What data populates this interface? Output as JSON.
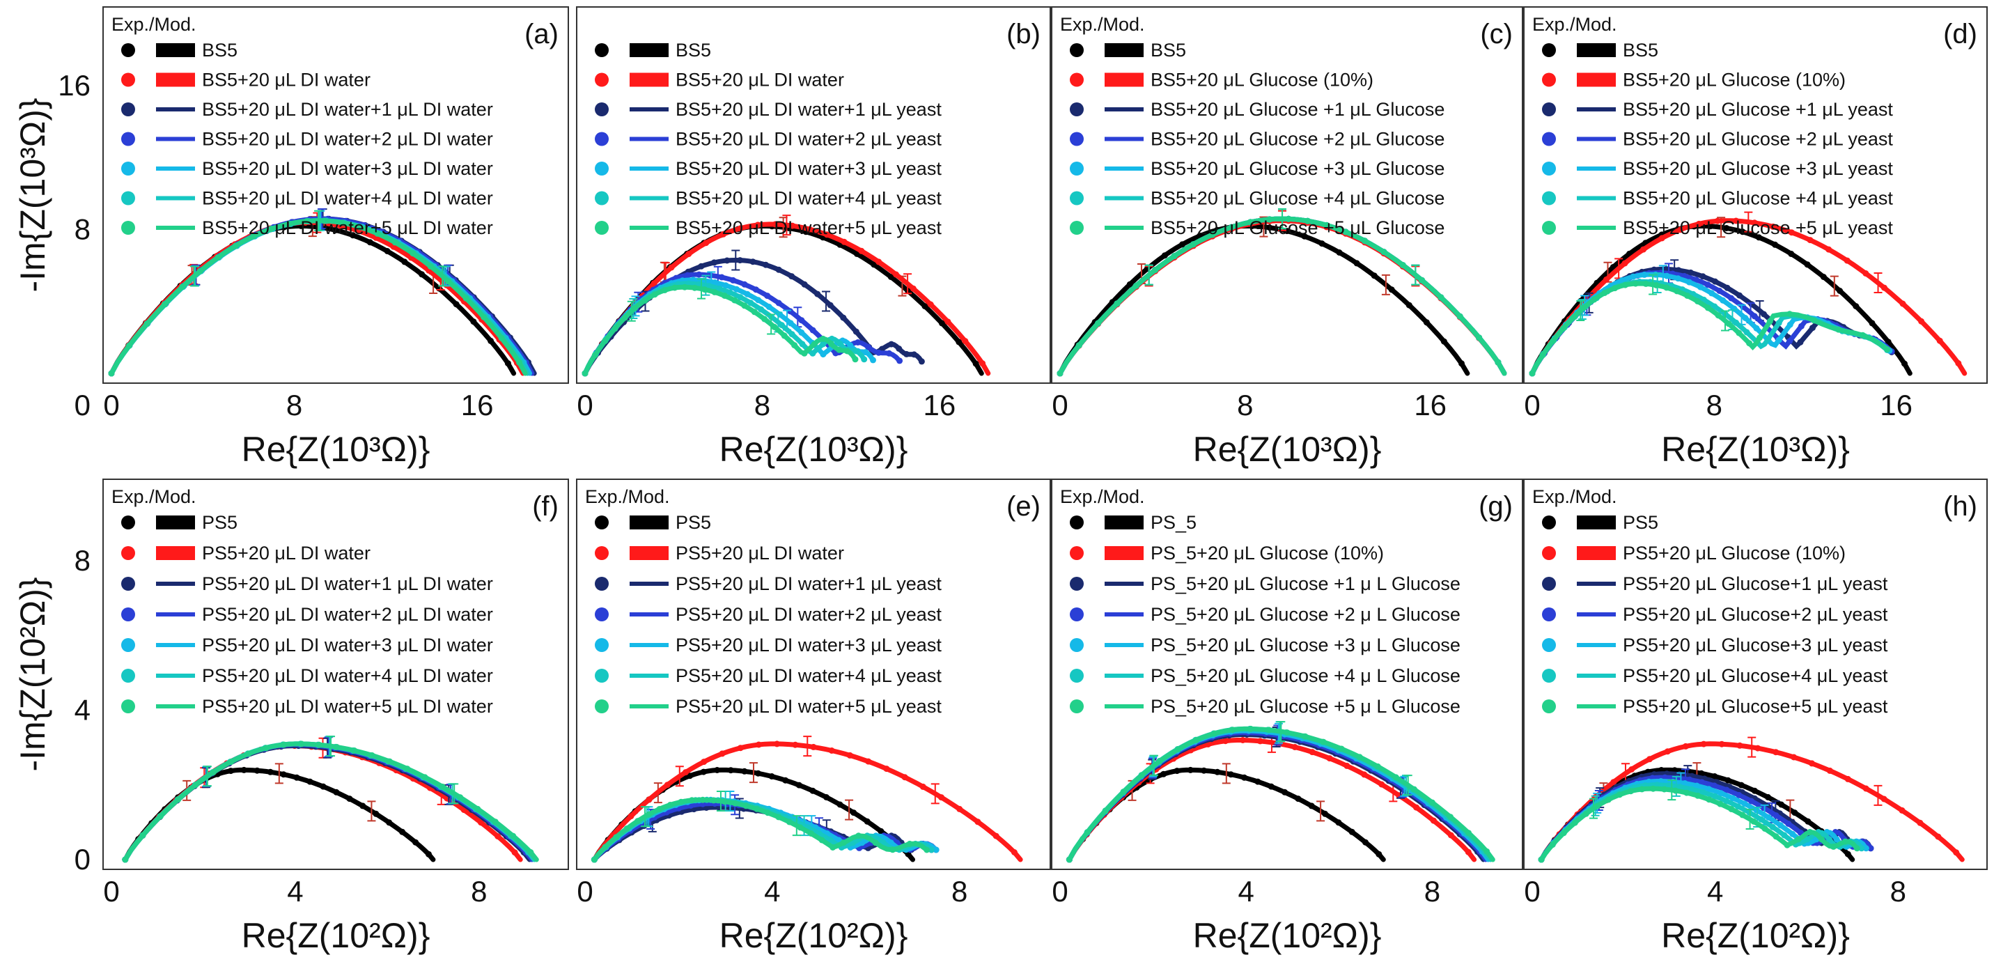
{
  "chart_data": [
    {
      "type": "line",
      "panel": "(a)",
      "legend_header": "Exp./Mod.",
      "xlabel": "Re{Z(10³Ω)}",
      "ylabel": "-Im{Z(10³Ω)}",
      "xlim": [
        0,
        19.5
      ],
      "ylim": [
        0,
        20
      ],
      "xticks": [
        0,
        8,
        16
      ],
      "yticks": [
        8,
        16
      ],
      "series": [
        {
          "name": "BS5",
          "color": "#000000",
          "shape": "arc",
          "x0": 0,
          "x1": 17.6,
          "peak": 8.2,
          "peak_at": 0.47
        },
        {
          "name": "BS5+20 μL DI water",
          "color": "#ff1a1a",
          "shape": "arc",
          "x0": 0,
          "x1": 18.0,
          "peak": 8.4,
          "peak_at": 0.48
        },
        {
          "name": "BS5+20 μL DI water+1 μL DI water",
          "color": "#1a2a6e",
          "shape": "arc",
          "x0": 0,
          "x1": 18.5,
          "peak": 8.6,
          "peak_at": 0.5
        },
        {
          "name": "BS5+20 μL DI water+2 μL DI water",
          "color": "#2b3fd6",
          "shape": "arc",
          "x0": 0,
          "x1": 18.4,
          "peak": 8.6,
          "peak_at": 0.5
        },
        {
          "name": "BS5+20 μL DI water+3 μL DI water",
          "color": "#15b9e8",
          "shape": "arc",
          "x0": 0,
          "x1": 18.3,
          "peak": 8.5,
          "peak_at": 0.5
        },
        {
          "name": "BS5+20 μL DI water+4 μL DI water",
          "color": "#16c7c2",
          "shape": "arc",
          "x0": 0,
          "x1": 18.2,
          "peak": 8.5,
          "peak_at": 0.5
        },
        {
          "name": "BS5+20 μL DI water+5 μL DI water",
          "color": "#22d08a",
          "shape": "arc",
          "x0": 0,
          "x1": 18.1,
          "peak": 8.5,
          "peak_at": 0.5
        }
      ]
    },
    {
      "type": "line",
      "panel": "(b)",
      "legend_header": "",
      "xlabel": "Re{Z(10³Ω)}",
      "ylabel": "",
      "xlim": [
        0,
        20.5
      ],
      "ylim": [
        0,
        20
      ],
      "xticks": [
        0,
        8,
        16
      ],
      "yticks": [
        8,
        16
      ],
      "series": [
        {
          "name": "BS5",
          "color": "#000000",
          "shape": "arc",
          "x0": 0,
          "x1": 17.9,
          "peak": 8.2,
          "peak_at": 0.45
        },
        {
          "name": "BS5+20 μL DI water",
          "color": "#ff1a1a",
          "shape": "arc",
          "x0": 0,
          "x1": 18.2,
          "peak": 8.3,
          "peak_at": 0.46
        },
        {
          "name": "BS5+20 μL DI water+1 μL  yeast",
          "color": "#1a2a6e",
          "shape": "tail",
          "x0": 0,
          "x1": 13.6,
          "peak": 6.3,
          "peak_at": 0.5,
          "tail_end": 15.2,
          "tail_level": 1.5
        },
        {
          "name": "BS5+20 μL DI water+2 μL  yeast",
          "color": "#2b3fd6",
          "shape": "tail",
          "x0": 0,
          "x1": 12.0,
          "peak": 5.5,
          "peak_at": 0.42,
          "tail_end": 14.2,
          "tail_level": 1.6
        },
        {
          "name": "BS5+20 μL DI water+3 μL  yeast",
          "color": "#15b9e8",
          "shape": "tail",
          "x0": 0,
          "x1": 11.4,
          "peak": 5.2,
          "peak_at": 0.42,
          "tail_end": 13.0,
          "tail_level": 1.7
        },
        {
          "name": "BS5+20 μL DI water+4 μL  yeast",
          "color": "#16c7c2",
          "shape": "tail",
          "x0": 0,
          "x1": 10.9,
          "peak": 5.0,
          "peak_at": 0.42,
          "tail_end": 12.6,
          "tail_level": 1.8
        },
        {
          "name": "BS5+20 μL DI water+5 μL  yeast",
          "color": "#22d08a",
          "shape": "tail",
          "x0": 0,
          "x1": 10.5,
          "peak": 4.8,
          "peak_at": 0.42,
          "tail_end": 12.2,
          "tail_level": 1.8
        }
      ]
    },
    {
      "type": "line",
      "panel": "(c)",
      "legend_header": "Exp./Mod.",
      "xlabel": "Re{Z(10³Ω)}",
      "ylabel": "",
      "xlim": [
        0,
        19.5
      ],
      "ylim": [
        0,
        20
      ],
      "xticks": [
        0,
        8,
        16
      ],
      "yticks": [
        8,
        16
      ],
      "series": [
        {
          "name": "BS5",
          "color": "#000000",
          "shape": "arc",
          "x0": 0,
          "x1": 17.6,
          "peak": 8.2,
          "peak_at": 0.46
        },
        {
          "name": "BS5+20 μL Glucose (10%)",
          "color": "#ff1a1a",
          "shape": "arc",
          "x0": 0,
          "x1": 19.2,
          "peak": 8.5,
          "peak_at": 0.5
        },
        {
          "name": "BS5+20 μL Glucose +1 μL Glucose",
          "color": "#1a2a6e",
          "shape": "arc",
          "x0": 0,
          "x1": 19.2,
          "peak": 8.6,
          "peak_at": 0.5
        },
        {
          "name": "BS5+20 μL Glucose +2 μL Glucose",
          "color": "#2b3fd6",
          "shape": "arc",
          "x0": 0,
          "x1": 19.2,
          "peak": 8.6,
          "peak_at": 0.5
        },
        {
          "name": "BS5+20 μL Glucose +3 μL Glucose",
          "color": "#15b9e8",
          "shape": "arc",
          "x0": 0,
          "x1": 19.2,
          "peak": 8.6,
          "peak_at": 0.5
        },
        {
          "name": "BS5+20 μL Glucose +4 μL Glucose",
          "color": "#16c7c2",
          "shape": "arc",
          "x0": 0,
          "x1": 19.2,
          "peak": 8.6,
          "peak_at": 0.5
        },
        {
          "name": "BS5+20 μL Glucose +5 μL Glucose",
          "color": "#22d08a",
          "shape": "arc",
          "x0": 0,
          "x1": 19.2,
          "peak": 8.6,
          "peak_at": 0.5
        }
      ]
    },
    {
      "type": "line",
      "panel": "(d)",
      "legend_header": "Exp./Mod.",
      "xlabel": "Re{Z(10³Ω)}",
      "ylabel": "",
      "xlim": [
        0,
        19.5
      ],
      "ylim": [
        0,
        20
      ],
      "xticks": [
        0,
        8,
        16
      ],
      "yticks": [
        8,
        16
      ],
      "series": [
        {
          "name": "BS5",
          "color": "#000000",
          "shape": "arc",
          "x0": 0,
          "x1": 16.6,
          "peak": 8.2,
          "peak_at": 0.45
        },
        {
          "name": "BS5+20 μL Glucose (10%)",
          "color": "#ff1a1a",
          "shape": "arc",
          "x0": 0,
          "x1": 19.0,
          "peak": 8.5,
          "peak_at": 0.45
        },
        {
          "name": "BS5+20 μL Glucose +1 μL yeast",
          "color": "#1a2a6e",
          "shape": "tail",
          "x0": 0,
          "x1": 12.5,
          "peak": 5.8,
          "peak_at": 0.46,
          "tail_end": 15.8,
          "tail_level": 2.8
        },
        {
          "name": "BS5+20 μL Glucose +2 μL yeast",
          "color": "#2b3fd6",
          "shape": "tail",
          "x0": 0,
          "x1": 12.0,
          "peak": 5.6,
          "peak_at": 0.46,
          "tail_end": 15.8,
          "tail_level": 2.9
        },
        {
          "name": "BS5+20 μL Glucose +3 μL yeast",
          "color": "#15b9e8",
          "shape": "tail",
          "x0": 0,
          "x1": 11.5,
          "peak": 5.5,
          "peak_at": 0.45,
          "tail_end": 15.7,
          "tail_level": 3.0
        },
        {
          "name": "BS5+20 μL Glucose +4 μL yeast",
          "color": "#16c7c2",
          "shape": "tail",
          "x0": 0,
          "x1": 11.0,
          "peak": 5.1,
          "peak_at": 0.44,
          "tail_end": 15.6,
          "tail_level": 3.1
        },
        {
          "name": "BS5+20 μL Glucose +5 μL yeast",
          "color": "#22d08a",
          "shape": "tail",
          "x0": 0,
          "x1": 10.6,
          "peak": 5.0,
          "peak_at": 0.44,
          "tail_end": 15.6,
          "tail_level": 3.2
        }
      ]
    },
    {
      "type": "line",
      "panel": "(f)",
      "legend_header": "Exp./Mod.",
      "xlabel": "Re{Z(10²Ω)}",
      "ylabel": "-Im{Z(10²Ω)}",
      "xlim": [
        0,
        9.7
      ],
      "ylim": [
        0,
        10
      ],
      "xticks": [
        0,
        4,
        8
      ],
      "yticks": [
        0,
        4,
        8
      ],
      "series": [
        {
          "name": "PS5",
          "color": "#000000",
          "shape": "arc",
          "x0": 0.3,
          "x1": 7.0,
          "peak": 2.4,
          "peak_at": 0.38
        },
        {
          "name": "PS5+20 μL DI water",
          "color": "#ff1a1a",
          "shape": "arc",
          "x0": 0.3,
          "x1": 8.9,
          "peak": 3.05,
          "peak_at": 0.42
        },
        {
          "name": "PS5+20 μL DI water+1 μL DI water",
          "color": "#1a2a6e",
          "shape": "arc",
          "x0": 0.3,
          "x1": 9.1,
          "peak": 3.05,
          "peak_at": 0.42
        },
        {
          "name": "PS5+20 μL DI water+2 μL DI water",
          "color": "#2b3fd6",
          "shape": "arc",
          "x0": 0.3,
          "x1": 9.15,
          "peak": 3.08,
          "peak_at": 0.42
        },
        {
          "name": "PS5+20 μL DI water+3 μL DI water",
          "color": "#15b9e8",
          "shape": "arc",
          "x0": 0.3,
          "x1": 9.2,
          "peak": 3.1,
          "peak_at": 0.42
        },
        {
          "name": "PS5+20 μL DI water+4 μL DI water",
          "color": "#16c7c2",
          "shape": "arc",
          "x0": 0.3,
          "x1": 9.2,
          "peak": 3.1,
          "peak_at": 0.42
        },
        {
          "name": "PS5+20 μL DI water+5 μL DI water",
          "color": "#22d08a",
          "shape": "arc",
          "x0": 0.3,
          "x1": 9.25,
          "peak": 3.1,
          "peak_at": 0.42
        }
      ]
    },
    {
      "type": "line",
      "panel": "(e)",
      "legend_header": "Exp./Mod.",
      "xlabel": "Re{Z(10²Ω)}",
      "ylabel": "",
      "xlim": [
        0,
        9.7
      ],
      "ylim": [
        0,
        10
      ],
      "xticks": [
        0,
        4,
        8
      ],
      "yticks": [
        0,
        4,
        8
      ],
      "series": [
        {
          "name": "PS5",
          "color": "#000000",
          "shape": "arc",
          "x0": 0.2,
          "x1": 7.0,
          "peak": 2.4,
          "peak_at": 0.4
        },
        {
          "name": "PS5+20 μL DI water",
          "color": "#ff1a1a",
          "shape": "arc",
          "x0": 0.2,
          "x1": 9.3,
          "peak": 3.1,
          "peak_at": 0.42
        },
        {
          "name": "PS5+20 μL DI water+1 μL yeast",
          "color": "#1a2a6e",
          "shape": "tail",
          "x0": 0.2,
          "x1": 6.4,
          "peak": 1.4,
          "peak_at": 0.42,
          "tail_end": 7.4,
          "tail_level": 0.5
        },
        {
          "name": "PS5+20 μL DI water+2 μL yeast",
          "color": "#2b3fd6",
          "shape": "tail",
          "x0": 0.2,
          "x1": 6.2,
          "peak": 1.5,
          "peak_at": 0.42,
          "tail_end": 7.5,
          "tail_level": 0.5
        },
        {
          "name": "PS5+20 μL DI water+3 μL yeast",
          "color": "#15b9e8",
          "shape": "tail",
          "x0": 0.2,
          "x1": 6.0,
          "peak": 1.6,
          "peak_at": 0.42,
          "tail_end": 7.5,
          "tail_level": 0.5
        },
        {
          "name": "PS5+20 μL DI water+4 μL yeast",
          "color": "#16c7c2",
          "shape": "tail",
          "x0": 0.2,
          "x1": 5.8,
          "peak": 1.6,
          "peak_at": 0.42,
          "tail_end": 7.4,
          "tail_level": 0.5
        },
        {
          "name": "PS5+20 μL DI water+5 μL yeast",
          "color": "#22d08a",
          "shape": "tail",
          "x0": 0.2,
          "x1": 5.6,
          "peak": 1.6,
          "peak_at": 0.42,
          "tail_end": 7.3,
          "tail_level": 0.5
        }
      ]
    },
    {
      "type": "line",
      "panel": "(g)",
      "legend_header": "Exp./Mod.",
      "xlabel": "Re{Z(10²Ω)}",
      "ylabel": "",
      "xlim": [
        0,
        9.7
      ],
      "ylim": [
        0,
        10
      ],
      "xticks": [
        0,
        4,
        8
      ],
      "yticks": [
        0,
        4,
        8
      ],
      "series": [
        {
          "name": "PS_5",
          "color": "#000000",
          "shape": "arc",
          "x0": 0.2,
          "x1": 6.95,
          "peak": 2.4,
          "peak_at": 0.38
        },
        {
          "name": "PS_5+20 μL Glucose (10%)",
          "color": "#ff1a1a",
          "shape": "arc",
          "x0": 0.2,
          "x1": 8.9,
          "peak": 3.2,
          "peak_at": 0.42
        },
        {
          "name": "PS_5+20 μL Glucose +1 μ L Glucose",
          "color": "#1a2a6e",
          "shape": "arc",
          "x0": 0.2,
          "x1": 9.1,
          "peak": 3.35,
          "peak_at": 0.42
        },
        {
          "name": "PS_5+20 μL Glucose +2 μ L Glucose",
          "color": "#2b3fd6",
          "shape": "arc",
          "x0": 0.2,
          "x1": 9.15,
          "peak": 3.4,
          "peak_at": 0.42
        },
        {
          "name": "PS_5+20 μL Glucose +3 μ L Glucose",
          "color": "#15b9e8",
          "shape": "arc",
          "x0": 0.2,
          "x1": 9.2,
          "peak": 3.45,
          "peak_at": 0.42
        },
        {
          "name": "PS_5+20 μL Glucose +4 μ L Glucose",
          "color": "#16c7c2",
          "shape": "arc",
          "x0": 0.2,
          "x1": 9.25,
          "peak": 3.5,
          "peak_at": 0.42
        },
        {
          "name": "PS_5+20 μL Glucose +5 μ L Glucose",
          "color": "#22d08a",
          "shape": "arc",
          "x0": 0.2,
          "x1": 9.3,
          "peak": 3.5,
          "peak_at": 0.42
        }
      ]
    },
    {
      "type": "line",
      "panel": "(h)",
      "legend_header": "Exp./Mod.",
      "xlabel": "Re{Z(10²Ω)}",
      "ylabel": "",
      "xlim": [
        0,
        9.7
      ],
      "ylim": [
        0,
        10
      ],
      "xticks": [
        0,
        4,
        8
      ],
      "yticks": [
        0,
        4,
        8
      ],
      "series": [
        {
          "name": "PS5",
          "color": "#000000",
          "shape": "arc",
          "x0": 0.2,
          "x1": 7.0,
          "peak": 2.4,
          "peak_at": 0.4
        },
        {
          "name": "PS5+20 μL Glucose (10%)",
          "color": "#ff1a1a",
          "shape": "arc",
          "x0": 0.2,
          "x1": 9.4,
          "peak": 3.1,
          "peak_at": 0.4
        },
        {
          "name": "PS5+20 μL Glucose+1 μL yeast",
          "color": "#1a2a6e",
          "shape": "tail",
          "x0": 0.2,
          "x1": 6.6,
          "peak": 2.3,
          "peak_at": 0.42,
          "tail_end": 7.4,
          "tail_level": 0.6
        },
        {
          "name": "PS5+20 μL Glucose+2 μL yeast",
          "color": "#2b3fd6",
          "shape": "tail",
          "x0": 0.2,
          "x1": 6.5,
          "peak": 2.2,
          "peak_at": 0.42,
          "tail_end": 7.4,
          "tail_level": 0.6
        },
        {
          "name": "PS5+20 μL Glucose+3 μL yeast",
          "color": "#15b9e8",
          "shape": "tail",
          "x0": 0.2,
          "x1": 6.3,
          "peak": 2.1,
          "peak_at": 0.42,
          "tail_end": 7.3,
          "tail_level": 0.6
        },
        {
          "name": "PS5+20 μL Glucose+4 μL yeast",
          "color": "#16c7c2",
          "shape": "tail",
          "x0": 0.2,
          "x1": 6.1,
          "peak": 2.0,
          "peak_at": 0.42,
          "tail_end": 7.2,
          "tail_level": 0.6
        },
        {
          "name": "PS5+20 μL Glucose+5 μL yeast",
          "color": "#22d08a",
          "shape": "tail",
          "x0": 0.2,
          "x1": 5.9,
          "peak": 1.9,
          "peak_at": 0.42,
          "tail_end": 7.1,
          "tail_level": 0.6
        }
      ]
    }
  ]
}
